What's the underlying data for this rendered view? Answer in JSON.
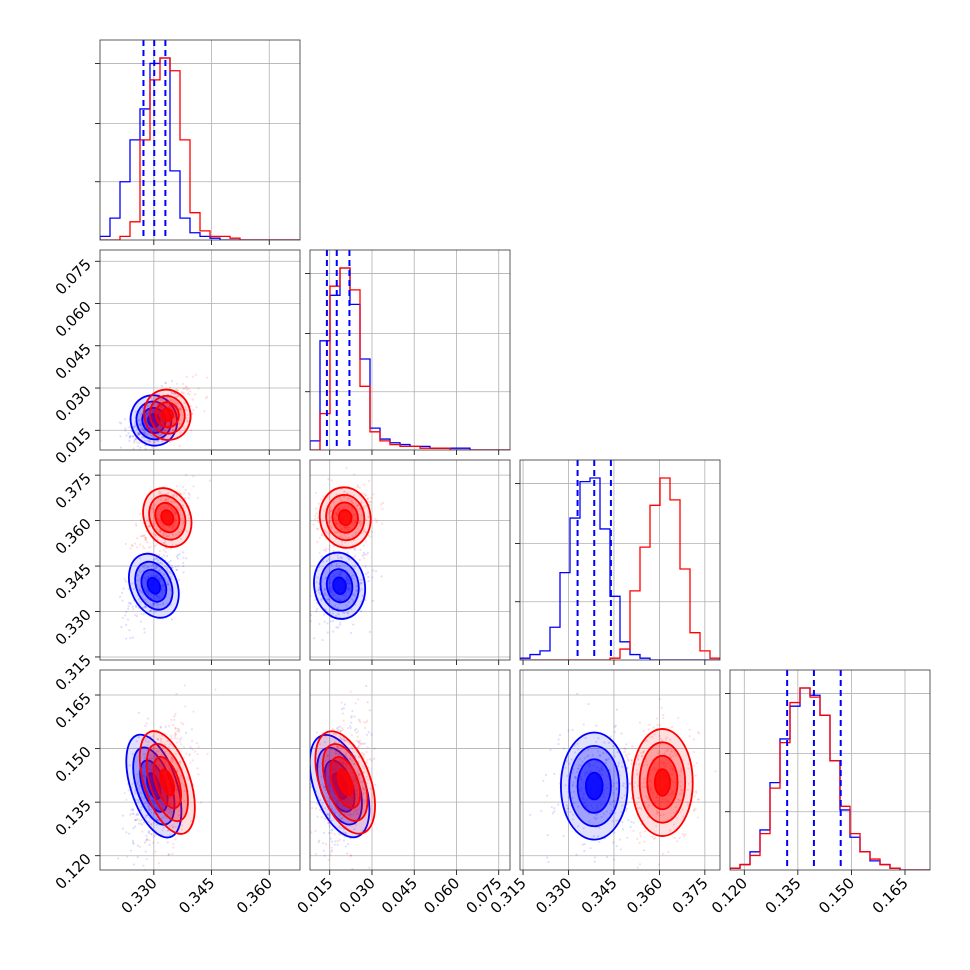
{
  "chart_data": {
    "type": "corner",
    "parameters": [
      "p0",
      "p1",
      "p2",
      "p3"
    ],
    "colors": {
      "blue_run": "#0000ff",
      "red_run": "#ff0000"
    },
    "grid": true,
    "axes": {
      "p0": {
        "range": [
          0.316,
          0.368
        ],
        "ticks": [
          "0.330",
          "0.345",
          "0.360"
        ]
      },
      "p1": {
        "range": [
          0.008,
          0.079
        ],
        "ticks": [
          "0.015",
          "0.030",
          "0.045",
          "0.060",
          "0.075"
        ]
      },
      "p2": {
        "range": [
          0.314,
          0.38
        ],
        "ticks": [
          "0.315",
          "0.330",
          "0.345",
          "0.360",
          "0.375"
        ]
      },
      "p3": {
        "range": [
          0.116,
          0.172
        ],
        "ticks": [
          "0.120",
          "0.135",
          "0.150",
          "0.165"
        ]
      }
    },
    "x_tick_labels": {
      "p0": [
        "0.330",
        "0.345",
        "0.360"
      ],
      "p1": [
        "0.015",
        "0.030",
        "0.045",
        "0.060",
        "0.075"
      ],
      "p2": [
        "0.315",
        "0.330",
        "0.345",
        "0.360",
        "0.375"
      ],
      "p3": [
        "0.120",
        "0.135",
        "0.150",
        "0.165"
      ]
    },
    "y_tick_labels": {
      "p1": [
        "0.015",
        "0.030",
        "0.045",
        "0.060",
        "0.075"
      ],
      "p2": [
        "0.315",
        "0.330",
        "0.345",
        "0.360",
        "0.375"
      ],
      "p3": [
        "0.120",
        "0.135",
        "0.150",
        "0.165"
      ]
    },
    "series": [
      {
        "color": "#0000ff",
        "mean": [
          0.33,
          0.0185,
          0.3385,
          0.1395
        ],
        "sigma": [
          0.003,
          0.0045,
          0.0055,
          0.0075
        ],
        "corr": {
          "p0_p1": 0.45,
          "p0_p2": 0.55,
          "p0_p3": 0.25,
          "p1_p2": 0.2,
          "p1_p3": 0.3,
          "p2_p3": 0.0
        },
        "quantiles": {
          "p0": [
            0.3273,
            0.3301,
            0.333
          ],
          "p1": [
            0.014,
            0.0175,
            0.022
          ],
          "p2": [
            0.333,
            0.3385,
            0.344
          ],
          "p3": [
            0.132,
            0.1395,
            0.147
          ]
        },
        "histograms": {
          "p0": [
            0.02,
            0.12,
            0.32,
            0.55,
            0.72,
            0.97,
            1.0,
            0.38,
            0.12,
            0.04,
            0.02,
            0.01,
            0.0,
            0.0,
            0.0,
            0.0,
            0.0,
            0.0,
            0.0,
            0.0
          ],
          "p1": [
            0.05,
            0.6,
            0.85,
            1.0,
            0.8,
            0.5,
            0.12,
            0.06,
            0.04,
            0.03,
            0.02,
            0.02,
            0.01,
            0.01,
            0.01,
            0.01,
            0.0,
            0.0,
            0.0,
            0.0
          ],
          "p2": [
            0.01,
            0.03,
            0.05,
            0.18,
            0.48,
            0.78,
            0.98,
            1.0,
            0.72,
            0.35,
            0.1,
            0.03,
            0.01,
            0.0,
            0.0,
            0.0,
            0.0,
            0.0,
            0.0,
            0.0
          ],
          "p3": [
            0.01,
            0.03,
            0.1,
            0.22,
            0.48,
            0.72,
            0.9,
            1.0,
            0.96,
            0.85,
            0.6,
            0.33,
            0.18,
            0.1,
            0.05,
            0.03,
            0.01,
            0.0,
            0.0,
            0.0
          ]
        }
      },
      {
        "color": "#ff0000",
        "mean": [
          0.3335,
          0.0205,
          0.361,
          0.1405
        ],
        "sigma": [
          0.003,
          0.0045,
          0.005,
          0.0075
        ],
        "corr": {
          "p0_p1": 0.45,
          "p0_p2": 0.55,
          "p0_p3": 0.25,
          "p1_p2": 0.2,
          "p1_p3": 0.3,
          "p2_p3": 0.0
        },
        "quantiles": {
          "p0": [
            0.3305,
            0.3335,
            0.3365
          ],
          "p1": [
            0.016,
            0.02,
            0.024
          ],
          "p2": [
            0.356,
            0.361,
            0.366
          ],
          "p3": [
            0.133,
            0.1405,
            0.148
          ]
        },
        "histograms": {
          "p0": [
            0.0,
            0.0,
            0.02,
            0.1,
            0.55,
            0.88,
            1.0,
            0.93,
            0.55,
            0.15,
            0.05,
            0.02,
            0.02,
            0.01,
            0.0,
            0.0,
            0.0,
            0.0,
            0.0,
            0.0
          ],
          "p1": [
            0.0,
            0.2,
            0.9,
            1.0,
            0.88,
            0.35,
            0.1,
            0.05,
            0.03,
            0.02,
            0.02,
            0.01,
            0.01,
            0.01,
            0.0,
            0.0,
            0.0,
            0.0,
            0.0,
            0.0
          ],
          "p2": [
            0.0,
            0.0,
            0.0,
            0.0,
            0.0,
            0.0,
            0.0,
            0.0,
            0.0,
            0.01,
            0.06,
            0.38,
            0.62,
            0.85,
            1.0,
            0.88,
            0.5,
            0.15,
            0.05,
            0.01
          ],
          "p3": [
            0.01,
            0.03,
            0.08,
            0.2,
            0.45,
            0.7,
            0.92,
            1.0,
            0.95,
            0.85,
            0.6,
            0.35,
            0.2,
            0.1,
            0.06,
            0.03,
            0.01,
            0.0,
            0.0,
            0.0
          ]
        }
      }
    ],
    "contour_levels_sigma": [
      0.5,
      1.0,
      1.5,
      2.0
    ]
  }
}
